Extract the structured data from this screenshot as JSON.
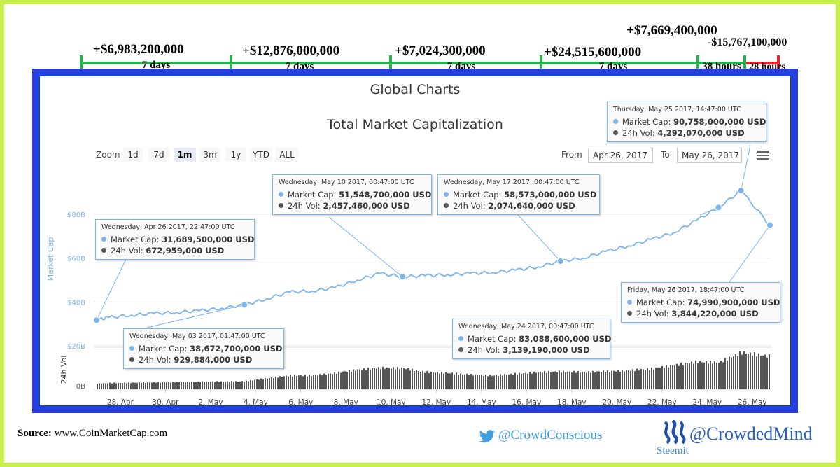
{
  "annotations": {
    "segments": [
      {
        "value": "+$6,983,200,000",
        "duration": "7 days"
      },
      {
        "value": "+$12,876,000,000",
        "duration": "7 days"
      },
      {
        "value": "+$7,024,300,000",
        "duration": "7 days"
      },
      {
        "value": "+$24,515,600,000",
        "duration": "7 days"
      },
      {
        "value": "+$7,669,400,000",
        "duration": "38 hours"
      },
      {
        "value": "-$15,767,100,000",
        "duration": "28 hours"
      }
    ],
    "colors": {
      "gain": "#27b14a",
      "loss": "#e8232b"
    }
  },
  "chart": {
    "title": "Global Charts",
    "subtitle": "Total Market Capitalization",
    "zoom_label": "Zoom",
    "zoom_buttons": [
      "1d",
      "7d",
      "1m",
      "3m",
      "1y",
      "YTD",
      "ALL"
    ],
    "zoom_active": "1m",
    "from_label": "From",
    "from_value": "Apr 26, 2017",
    "to_label": "To",
    "to_value": "May 26, 2017",
    "menu_icon": "hamburger-menu-icon"
  },
  "tooltips": [
    {
      "date": "Wednesday, Apr 26 2017, 22:47:00 UTC",
      "cap_label": "Market Cap:",
      "cap": "31,689,500,000 USD",
      "vol_label": "24h Vol:",
      "vol": "672,959,000 USD"
    },
    {
      "date": "Wednesday, May 03 2017, 01:47:00 UTC",
      "cap_label": "Market Cap:",
      "cap": "38,672,700,000 USD",
      "vol_label": "24h Vol:",
      "vol": "929,884,000 USD"
    },
    {
      "date": "Wednesday, May 10 2017, 00:47:00 UTC",
      "cap_label": "Market Cap:",
      "cap": "51,548,700,000 USD",
      "vol_label": "24h Vol:",
      "vol": "2,457,460,000 USD"
    },
    {
      "date": "Wednesday, May 17 2017, 00:47:00 UTC",
      "cap_label": "Market Cap:",
      "cap": "58,573,000,000 USD",
      "vol_label": "24h Vol:",
      "vol": "2,074,640,000 USD"
    },
    {
      "date": "Wednesday, May 24 2017, 00:47:00 UTC",
      "cap_label": "Market Cap:",
      "cap": "83,088,600,000 USD",
      "vol_label": "24h Vol:",
      "vol": "3,139,190,000 USD"
    },
    {
      "date": "Thursday, May 25 2017, 14:47:00 UTC",
      "cap_label": "Market Cap:",
      "cap": "90,758,000,000 USD",
      "vol_label": "24h Vol:",
      "vol": "4,292,070,000 USD"
    },
    {
      "date": "Friday, May 26 2017, 18:47:00 UTC",
      "cap_label": "Market Cap:",
      "cap": "74,990,900,000 USD",
      "vol_label": "24h Vol:",
      "vol": "3,844,220,000 USD"
    }
  ],
  "chart_data": {
    "type": "line",
    "title": "Total Market Capitalization",
    "ylabel": "Market Cap",
    "ylabel2": "24h Vol",
    "xticks": [
      "28. Apr",
      "30. Apr",
      "2. May",
      "4. May",
      "6. May",
      "8. May",
      "10. May",
      "12. May",
      "14. May",
      "16. May",
      "18. May",
      "20. May",
      "22. May",
      "24. May",
      "26. May"
    ],
    "yticks": [
      "$20B",
      "$40B",
      "$60B",
      "$80B"
    ],
    "vol_ytick": "0B",
    "ylim": [
      20,
      100
    ],
    "series": [
      {
        "name": "Market Cap",
        "x": [
          "2017-04-26",
          "2017-04-27",
          "2017-04-28",
          "2017-04-29",
          "2017-04-30",
          "2017-05-01",
          "2017-05-02",
          "2017-05-03",
          "2017-05-04",
          "2017-05-05",
          "2017-05-06",
          "2017-05-07",
          "2017-05-08",
          "2017-05-09",
          "2017-05-10",
          "2017-05-11",
          "2017-05-12",
          "2017-05-13",
          "2017-05-14",
          "2017-05-15",
          "2017-05-16",
          "2017-05-17",
          "2017-05-18",
          "2017-05-19",
          "2017-05-20",
          "2017-05-21",
          "2017-05-22",
          "2017-05-23",
          "2017-05-24",
          "2017-05-25",
          "2017-05-26"
        ],
        "values": [
          31.7,
          33.0,
          34.0,
          34.8,
          35.3,
          36.0,
          37.2,
          38.7,
          41.5,
          44.5,
          45.0,
          46.5,
          50.0,
          53.0,
          51.5,
          52.0,
          52.5,
          53.0,
          53.5,
          54.5,
          56.0,
          58.6,
          60.0,
          63.0,
          65.5,
          68.5,
          71.5,
          77.0,
          83.1,
          90.8,
          75.0
        ]
      },
      {
        "name": "24h Vol",
        "x": [
          "2017-04-26",
          "2017-04-27",
          "2017-04-28",
          "2017-04-29",
          "2017-04-30",
          "2017-05-01",
          "2017-05-02",
          "2017-05-03",
          "2017-05-04",
          "2017-05-05",
          "2017-05-06",
          "2017-05-07",
          "2017-05-08",
          "2017-05-09",
          "2017-05-10",
          "2017-05-11",
          "2017-05-12",
          "2017-05-13",
          "2017-05-14",
          "2017-05-15",
          "2017-05-16",
          "2017-05-17",
          "2017-05-18",
          "2017-05-19",
          "2017-05-20",
          "2017-05-21",
          "2017-05-22",
          "2017-05-23",
          "2017-05-24",
          "2017-05-25",
          "2017-05-26"
        ],
        "values": [
          0.67,
          0.72,
          0.76,
          0.8,
          0.83,
          0.88,
          0.9,
          0.93,
          1.3,
          1.6,
          1.6,
          1.9,
          2.3,
          2.5,
          2.46,
          2.0,
          1.9,
          1.7,
          1.6,
          1.8,
          2.0,
          2.07,
          2.0,
          2.1,
          2.2,
          2.4,
          2.8,
          3.2,
          3.14,
          4.29,
          3.84
        ]
      }
    ],
    "highlight_points": [
      {
        "x": "2017-04-26",
        "y": 31.7
      },
      {
        "x": "2017-05-03",
        "y": 38.7
      },
      {
        "x": "2017-05-10",
        "y": 51.5
      },
      {
        "x": "2017-05-17",
        "y": 58.6
      },
      {
        "x": "2017-05-24",
        "y": 83.1
      },
      {
        "x": "2017-05-25",
        "y": 90.8
      },
      {
        "x": "2017-05-26",
        "y": 75.0
      }
    ],
    "colors": {
      "line": "#7cb5ec",
      "volume": "#555555",
      "axis_text": "#7cb5ec"
    }
  },
  "footer": {
    "source_label": "Source:",
    "source_value": "www.CoinMarketCap.com",
    "twitter_icon": "twitter-bird-icon",
    "twitter_handle": "@CrowdConscious",
    "steemit_icon": "steemit-logo-icon",
    "steemit_label": "Steemit",
    "steemit_handle": "@CrowdedMind"
  }
}
